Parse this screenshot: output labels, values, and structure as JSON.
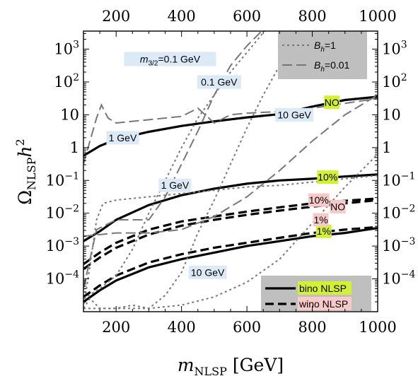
{
  "chart_data": {
    "type": "line",
    "xlabel_main": "m",
    "xlabel_sub": "NLSP",
    "xlabel_unit": "[GeV]",
    "ylabel_main": "Ω",
    "ylabel_sub": "NLSP",
    "ylabel_tail": "h",
    "ylabel_sup": "2",
    "xlim": [
      100,
      1000
    ],
    "ylog10_lim": [
      -5,
      3.55
    ],
    "x_ticks": [
      200,
      400,
      600,
      800,
      1000
    ],
    "x_tick_labels": [
      "200",
      "400",
      "600",
      "800",
      "1000"
    ],
    "y_ticks": [
      {
        "v": -4,
        "base": "10",
        "exp": "−4"
      },
      {
        "v": -3,
        "base": "10",
        "exp": "−3"
      },
      {
        "v": -2,
        "base": "10",
        "exp": "−2"
      },
      {
        "v": -1,
        "base": "10",
        "exp": "−1"
      },
      {
        "v": 0,
        "base": "1",
        "exp": ""
      },
      {
        "v": 1,
        "base": "10",
        "exp": ""
      },
      {
        "v": 2,
        "base": "10",
        "exp": "2"
      },
      {
        "v": 3,
        "base": "10",
        "exp": "3"
      }
    ],
    "series": [
      {
        "style": "solid",
        "x": [
          100,
          150,
          200,
          300,
          400,
          500,
          600,
          700,
          800,
          900,
          1000
        ],
        "log10y": [
          -0.25,
          0.05,
          0.25,
          0.48,
          0.66,
          0.8,
          0.92,
          1.02,
          1.25,
          1.45,
          1.55
        ]
      },
      {
        "style": "solid",
        "x": [
          100,
          150,
          200,
          300,
          400,
          500,
          600,
          700,
          800,
          900,
          1000
        ],
        "log10y": [
          -2.85,
          -2.55,
          -2.2,
          -1.75,
          -1.45,
          -1.25,
          -1.1,
          -1.0,
          -0.95,
          -0.88,
          -0.82
        ]
      },
      {
        "style": "dashed",
        "x": [
          100,
          150,
          200,
          300,
          400,
          500,
          600,
          700,
          800,
          900,
          1000
        ],
        "log10y": [
          -3.55,
          -3.2,
          -2.9,
          -2.5,
          -2.25,
          -2.1,
          -1.95,
          -1.82,
          -1.7,
          -1.62,
          -1.55
        ]
      },
      {
        "style": "dashed",
        "x": [
          100,
          150,
          200,
          300,
          400,
          500,
          600,
          700,
          800,
          900,
          1000
        ],
        "log10y": [
          -3.7,
          -3.35,
          -3.05,
          -2.65,
          -2.38,
          -2.2,
          -2.05,
          -1.92,
          -1.8,
          -1.7,
          -1.6
        ]
      },
      {
        "style": "dashed",
        "x": [
          100,
          150,
          200,
          300,
          400,
          500,
          600,
          700,
          800,
          900,
          1000
        ],
        "log10y": [
          -4.55,
          -4.2,
          -3.9,
          -3.5,
          -3.25,
          -3.05,
          -2.9,
          -2.75,
          -2.6,
          -2.5,
          -2.42
        ]
      },
      {
        "style": "solid",
        "x": [
          100,
          150,
          200,
          300,
          400,
          500,
          600,
          700,
          800,
          900,
          1000
        ],
        "log10y": [
          -4.7,
          -4.35,
          -4.05,
          -3.65,
          -3.4,
          -3.2,
          -3.0,
          -2.85,
          -2.7,
          -2.6,
          -2.45
        ]
      },
      {
        "style": "gdash",
        "x": [
          100,
          120,
          140,
          155,
          175,
          200,
          300,
          400,
          450,
          500,
          550,
          600,
          700,
          800,
          900,
          1000
        ],
        "log10y": [
          -0.5,
          0.2,
          0.9,
          1.3,
          0.9,
          0.75,
          0.85,
          0.95,
          1.2,
          0.75,
          1.0,
          1.05,
          1.1,
          1.2,
          1.35,
          1.5
        ]
      },
      {
        "style": "gdash",
        "x": [
          100,
          140,
          200,
          300,
          350,
          400,
          450,
          500,
          550,
          600,
          650,
          700
        ],
        "log10y": [
          -4.3,
          -2.5,
          -2.2,
          -2.2,
          -1.5,
          -0.5,
          0.5,
          1.6,
          2.5,
          3.1,
          3.6,
          3.9
        ]
      },
      {
        "style": "gdash",
        "x": [
          100,
          200,
          300,
          400,
          500,
          600,
          700,
          800,
          900,
          1000
        ],
        "log10y": [
          -2.7,
          -2.6,
          -2.6,
          -2.5,
          -2.1,
          -1.5,
          -0.7,
          0.2,
          1.0,
          1.6
        ]
      },
      {
        "style": "gdot",
        "x": [
          100,
          120,
          140,
          160,
          200,
          300,
          400,
          500,
          600,
          700,
          800,
          900,
          1000
        ],
        "log10y": [
          -4.9,
          -3.6,
          -2.2,
          -1.7,
          -1.6,
          -1.5,
          -1.4,
          -1.3,
          -1.2,
          -1.15,
          -1.05,
          -0.95,
          -0.85
        ]
      },
      {
        "style": "gdot",
        "x": [
          100,
          150,
          200,
          250,
          300,
          350,
          400,
          450,
          500,
          550,
          600,
          650,
          700
        ],
        "log10y": [
          -4.6,
          -4.3,
          -3.9,
          -3.1,
          -2.0,
          -1.0,
          0.0,
          0.9,
          1.6,
          2.3,
          2.9,
          3.5,
          4.0
        ]
      },
      {
        "style": "gdot",
        "x": [
          100,
          120,
          150,
          200,
          250,
          300,
          350,
          400,
          450,
          500,
          550,
          600,
          650,
          700,
          750
        ],
        "log10y": [
          -4.9,
          -4.6,
          -4.9,
          -4.9,
          -4.8,
          -4.9,
          -4.5,
          -3.8,
          -2.6,
          -1.6,
          -0.5,
          0.6,
          1.6,
          2.5,
          3.4
        ]
      },
      {
        "style": "gdot",
        "x": [
          100,
          200,
          300,
          400,
          500,
          600,
          700,
          800,
          900,
          1000
        ],
        "log10y": [
          -4.9,
          -4.9,
          -4.9,
          -4.8,
          -4.55,
          -4.1,
          -3.4,
          -2.3,
          -1.2,
          -0.2
        ]
      }
    ],
    "annotations": [
      {
        "text": "1 GeV",
        "x": 220,
        "log10y": 0.3,
        "bg": "#dce9f7"
      },
      {
        "text": "1 GeV",
        "x": 380,
        "log10y": -1.15,
        "bg": "#dce9f7"
      },
      {
        "text": "0.1 GeV",
        "x": 515,
        "log10y": 2.0,
        "bg": "#dce9f7"
      },
      {
        "text": "10 GeV",
        "x": 745,
        "log10y": 1.0,
        "bg": "#dce9f7"
      },
      {
        "text": "10 GeV",
        "x": 480,
        "log10y": -3.8,
        "bg": "#dce9f7"
      },
      {
        "text": "NO",
        "x": 860,
        "log10y": 1.38,
        "bg": "#d4f033"
      },
      {
        "text": "10%",
        "x": 847,
        "log10y": -0.9,
        "bg": "#d4f033"
      },
      {
        "text": "1%",
        "x": 835,
        "log10y": -2.55,
        "bg": "#d4f033"
      },
      {
        "text": "10%",
        "x": 820,
        "log10y": -1.6,
        "bg": "#f7c9c9"
      },
      {
        "text": "NO",
        "x": 878,
        "log10y": -1.8,
        "bg": "#f7c9c9"
      },
      {
        "text": "1%",
        "x": 826,
        "log10y": -2.2,
        "bg": "#f7c9c9"
      }
    ],
    "m32_label": {
      "prefix": "m",
      "sub": "3/2",
      "suffix": "=0.1 GeV",
      "x": 365,
      "log10y": 2.7,
      "bg": "#dce9f7"
    },
    "legend_top": [
      {
        "style": "gdot",
        "label_main": "B",
        "label_sub": "h",
        "label_val": "=1"
      },
      {
        "style": "gdash",
        "label_main": "B",
        "label_sub": "h",
        "label_val": "=0.01"
      }
    ],
    "legend_bottom": [
      {
        "style": "solid",
        "label": "bino NLSP",
        "bg": "#d4f033"
      },
      {
        "style": "dashed",
        "label": "wino NLSP",
        "bg": "#f7c9c9"
      }
    ],
    "legend_top_placement": "top-right",
    "legend_bottom_placement": "bottom-right",
    "grid": false,
    "colors": {
      "thin": "#777777",
      "legend_bg": "#bfbfbf",
      "label_bg_blue": "#dce9f7",
      "label_bg_green": "#d4f033",
      "label_bg_red": "#f7c9c9"
    }
  }
}
